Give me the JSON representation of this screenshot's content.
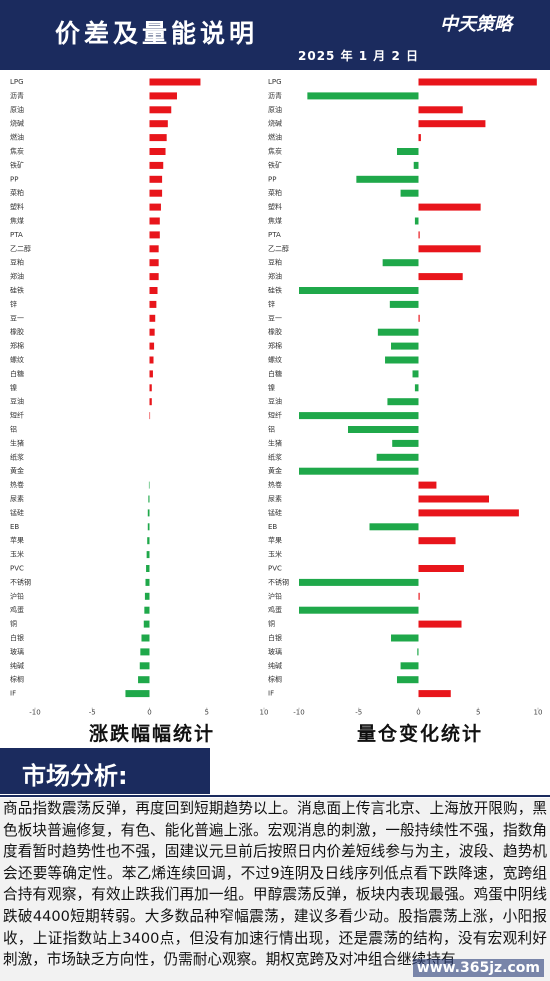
{
  "header": {
    "title": "价差及量能说明",
    "date": "2025 年 1 月 2 日",
    "logo": "中天策略"
  },
  "chart_data": [
    {
      "type": "bar",
      "orientation": "horizontal",
      "title": "涨跌幅幅统计",
      "categories": [
        "LPG",
        "沥青",
        "原油",
        "烧碱",
        "燃油",
        "焦炭",
        "铁矿",
        "PP",
        "菜粕",
        "塑料",
        "焦煤",
        "PTA",
        "乙二醇",
        "豆粕",
        "郑油",
        "硅铁",
        "锌",
        "豆一",
        "橡胶",
        "郑棉",
        "螺纹",
        "白糖",
        "镍",
        "豆油",
        "短纤",
        "铝",
        "生猪",
        "纸浆",
        "黄金",
        "热卷",
        "尿素",
        "锰硅",
        "EB",
        "苹果",
        "玉米",
        "PVC",
        "不锈钢",
        "沪铅",
        "鸡蛋",
        "铜",
        "白银",
        "玻璃",
        "纯碱",
        "棕榈",
        "IF"
      ],
      "values": [
        4.45,
        2.4,
        1.9,
        1.6,
        1.5,
        1.4,
        1.2,
        1.1,
        1.1,
        1.0,
        0.9,
        0.9,
        0.8,
        0.8,
        0.8,
        0.7,
        0.6,
        0.5,
        0.45,
        0.4,
        0.35,
        0.3,
        0.2,
        0.2,
        0.05,
        0,
        0,
        0,
        0,
        -0.05,
        -0.1,
        -0.15,
        -0.15,
        -0.2,
        -0.25,
        -0.3,
        -0.35,
        -0.4,
        -0.45,
        -0.5,
        -0.7,
        -0.8,
        -0.85,
        -1.0,
        -2.1
      ],
      "colors": {
        "positive": "#e8151b",
        "negative": "#1fa84a"
      },
      "xlim": [
        -10,
        10
      ],
      "xticks": [
        -10,
        -5,
        0,
        5,
        10
      ]
    },
    {
      "type": "bar",
      "orientation": "horizontal",
      "title": "量仓变化统计",
      "categories": [
        "LPG",
        "沥青",
        "原油",
        "烧碱",
        "燃油",
        "焦炭",
        "铁矿",
        "PP",
        "菜粕",
        "塑料",
        "焦煤",
        "PTA",
        "乙二醇",
        "豆粕",
        "郑油",
        "硅铁",
        "锌",
        "豆一",
        "橡胶",
        "郑棉",
        "螺纹",
        "白糖",
        "镍",
        "豆油",
        "短纤",
        "铝",
        "生猪",
        "纸浆",
        "黄金",
        "热卷",
        "尿素",
        "锰硅",
        "EB",
        "苹果",
        "玉米",
        "PVC",
        "不锈钢",
        "沪铅",
        "鸡蛋",
        "铜",
        "白银",
        "玻璃",
        "纯碱",
        "棕榈",
        "IF"
      ],
      "values": [
        9.9,
        -9.3,
        3.7,
        5.6,
        0.2,
        -1.8,
        -0.4,
        -5.2,
        -1.5,
        5.2,
        -0.3,
        0.1,
        5.2,
        -3.0,
        3.7,
        -10,
        -2.4,
        0.1,
        -3.4,
        -2.3,
        -2.8,
        -0.5,
        -0.3,
        -2.6,
        -10,
        -5.9,
        -2.2,
        -3.5,
        -10,
        1.5,
        5.9,
        8.4,
        -4.1,
        3.1,
        0,
        3.8,
        -10,
        0.1,
        -10,
        3.6,
        -2.3,
        -0.1,
        -1.5,
        -1.8,
        2.7
      ],
      "colors": {
        "positive": "#e8151b",
        "negative": "#1fa84a"
      },
      "xlim": [
        -10,
        10
      ],
      "xticks": [
        -10,
        -5,
        0,
        5,
        10
      ]
    }
  ],
  "section_title": "市场分析:",
  "analysis": "商品指数震荡反弹，再度回到短期趋势以上。消息面上传言北京、上海放开限购，黑色板块普遍修复，有色、能化普遍上涨。宏观消息的刺激，一般持续性不强，指数角度看暂时趋势性也不强，固建议元旦前后按照日内价差短线参与为主，波段、趋势机会还要等确定性。苯乙烯连续回调，不过9连阴及日线序列低点看下跌降速，宽跨组合持有观察，有效止跌我们再加一组。甲醇震荡反弹，板块内表现最强。鸡蛋中阴线跌破4400短期转弱。大多数品种窄幅震荡，建议多看少动。股指震荡上涨，小阳报收，上证指数站上3400点，但没有加速行情出现，还是震荡的结构，没有宏观利好刺激，市场缺乏方向性，仍需耐心观察。期权宽跨及对冲组合继续持有",
  "watermark": "www.365jz.com"
}
